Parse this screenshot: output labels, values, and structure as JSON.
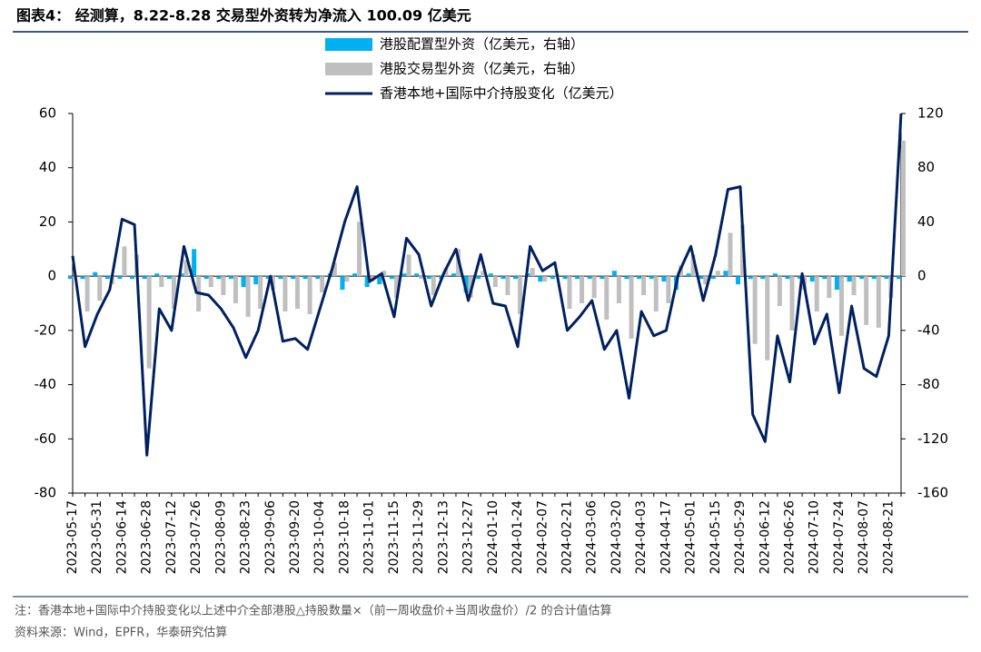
{
  "chart_data": {
    "type": "bar-line",
    "title": "图表4：  经测算，8.22-8.28 交易型外资转为净流入 100.09 亿美元",
    "note": "注：香港本地+国际中介持股变化以上述中介全部港股△持股数量×（前一周收盘价+当周收盘价）/2 的合计值估算",
    "source": "资料来源：Wind，EPFR，华泰研究估算",
    "categories": [
      "2023-05-17",
      null,
      "2023-05-31",
      null,
      "2023-06-14",
      null,
      "2023-06-28",
      null,
      "2023-07-12",
      null,
      "2023-07-26",
      null,
      "2023-08-09",
      null,
      "2023-08-23",
      null,
      "2023-09-06",
      null,
      "2023-09-20",
      null,
      "2023-10-04",
      null,
      "2023-10-18",
      null,
      "2023-11-01",
      null,
      "2023-11-15",
      null,
      "2023-11-29",
      null,
      "2023-12-13",
      null,
      "2023-12-27",
      null,
      "2024-01-10",
      null,
      "2024-01-24",
      null,
      "2024-02-07",
      null,
      "2024-02-21",
      null,
      "2024-03-06",
      null,
      "2024-03-20",
      null,
      "2024-04-03",
      null,
      "2024-04-17",
      null,
      "2024-05-01",
      null,
      "2024-05-15",
      null,
      "2024-05-29",
      null,
      "2024-06-12",
      null,
      "2024-06-26",
      null,
      "2024-07-10",
      null,
      "2024-07-24",
      null,
      "2024-08-07",
      null,
      "2024-08-21",
      null
    ],
    "series": [
      {
        "name": "港股配置型外资（亿美元，右轴）",
        "color": "#00b0f0",
        "axis": "y2",
        "kind": "bar",
        "values": [
          -2,
          -2,
          3,
          -2,
          -2,
          -2,
          -2,
          2,
          -2,
          2,
          20,
          -2,
          -2,
          -2,
          -8,
          -6,
          -2,
          -2,
          -2,
          -2,
          -2,
          2,
          -10,
          2,
          -8,
          -6,
          -2,
          2,
          2,
          -2,
          -2,
          2,
          -12,
          -2,
          2,
          -2,
          -2,
          2,
          -4,
          -2,
          -2,
          -2,
          -2,
          -2,
          4,
          -2,
          -2,
          -2,
          -4,
          -10,
          2,
          -2,
          -2,
          4,
          -6,
          -2,
          -2,
          2,
          -2,
          -2,
          -4,
          -2,
          -10,
          -4,
          -2,
          -2,
          -2,
          -2
        ]
      },
      {
        "name": "港股交易型外资（亿美元，右轴）",
        "color": "#bfbfbf",
        "axis": "y2",
        "kind": "bar",
        "values": [
          -2,
          -26,
          -18,
          -6,
          22,
          16,
          -68,
          -8,
          -24,
          12,
          -26,
          -8,
          -14,
          -20,
          -30,
          -24,
          -10,
          -26,
          -24,
          -28,
          -12,
          10,
          -4,
          40,
          -4,
          4,
          -16,
          16,
          -2,
          -14,
          6,
          20,
          -16,
          4,
          -8,
          -14,
          -28,
          6,
          -4,
          2,
          -24,
          -20,
          -16,
          -32,
          -20,
          -46,
          -14,
          -26,
          -20,
          8,
          16,
          -6,
          4,
          32,
          38,
          -50,
          -62,
          -22,
          -40,
          -10,
          -26,
          -16,
          -44,
          -14,
          -36,
          -38,
          -16,
          100.09
        ]
      },
      {
        "name": "香港本地+国际中介持股变化（亿美元）",
        "color": "#002060",
        "axis": "y",
        "kind": "line",
        "values": [
          7.5,
          -26,
          -14,
          -5,
          21,
          19,
          -66,
          -12,
          -20,
          11,
          -6,
          -7,
          -12,
          -19,
          -30,
          -20,
          0,
          -24,
          -23,
          -27,
          -12,
          3,
          20,
          33,
          -2,
          1,
          -15,
          14,
          8,
          -11,
          1,
          10,
          -9,
          8,
          -10,
          -11,
          -26,
          11,
          2,
          5,
          -20,
          -15,
          -9,
          -27,
          -20,
          -45,
          -13,
          -22,
          -20,
          1,
          11,
          -9,
          8,
          32,
          33,
          -51,
          -61,
          -22,
          -39,
          1,
          -25,
          -14,
          -43,
          -11,
          -34,
          -37,
          -22,
          60
        ]
      }
    ],
    "ylim": [
      -80,
      60
    ],
    "yticks": [
      -80,
      -60,
      -40,
      -20,
      0,
      20,
      40,
      60
    ],
    "y2lim": [
      -160,
      120
    ],
    "y2ticks": [
      -160,
      -120,
      -80,
      -40,
      0,
      40,
      80,
      120
    ],
    "grid": false
  }
}
